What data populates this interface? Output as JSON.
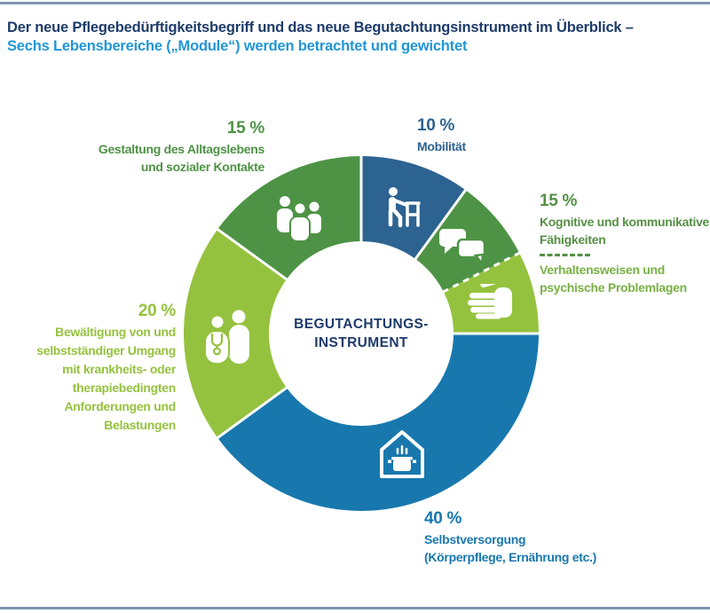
{
  "header": {
    "title_line1": "Der neue Pflegebedürftigkeitsbegriff und das neue Begutachtungsinstrument im Überblick –",
    "title_line2": "Sechs Lebensbereiche („Module“) werden betrachtet und gewichtet",
    "title_color_line1": "#1e3b6a",
    "title_color_line2": "#2196d6"
  },
  "chart_data": {
    "type": "pie",
    "title": "Sechs Lebensbereiche („Module“) werden betrachtet und gewichtet",
    "center_label": {
      "line1": "BEGUTACHTUNGS-",
      "line2": "INSTRUMENT"
    },
    "direction": "clockwise",
    "start_angle_deg": 0,
    "outer_radius_px": 200,
    "inner_radius_px": 104,
    "gap_color": "#ffffff",
    "arcs": [
      {
        "name": "mobilitaet",
        "label": "Mobilität",
        "module_percent_label": "10 %",
        "percent_of_total": 10,
        "color": "#2d6391",
        "divider_before": "solid",
        "icon": "person-with-walker-icon"
      },
      {
        "name": "kognitive-faehigkeiten",
        "label": "Kognitive und kommunikative Fähigkeiten",
        "module_percent_label": "15 %",
        "percent_of_total": 7.5,
        "color": "#4e9345",
        "divider_before": "solid",
        "icon": "speech-bubbles-icon"
      },
      {
        "name": "verhaltensweisen",
        "label": "Verhaltensweisen und psychische Problemlagen",
        "module_percent_label": "15 %",
        "percent_of_total": 7.5,
        "color": "#95c23e",
        "divider_before": "dashed",
        "icon": "hand-icon"
      },
      {
        "name": "selbstversorgung",
        "label": "Selbstversorgung (Körperpflege, Ernährung etc.)",
        "module_percent_label": "40 %",
        "percent_of_total": 40,
        "color": "#1878ae",
        "divider_before": "solid",
        "icon": "house-cooking-pot-icon"
      },
      {
        "name": "bewaeltigung",
        "label": "Bewältigung von und selbstständiger Umgang mit krankheits- oder therapiebedingten Anforderungen und Belastungen",
        "module_percent_label": "20 %",
        "percent_of_total": 20,
        "color": "#95c23e",
        "divider_before": "solid",
        "icon": "doctor-patient-icon"
      },
      {
        "name": "gestaltung-alltagsleben",
        "label": "Gestaltung des Alltagslebens und sozialer Kontakte",
        "module_percent_label": "15 %",
        "percent_of_total": 15,
        "color": "#4e9345",
        "divider_before": "solid",
        "icon": "people-group-icon"
      }
    ]
  },
  "labels": {
    "gestaltung": {
      "percent": "15 %",
      "lines": [
        "Gestaltung des Alltagslebens",
        "und sozialer Kontakte"
      ],
      "color": "#4e9345"
    },
    "mobilitaet": {
      "percent": "10 %",
      "lines": [
        "Mobilität"
      ],
      "color": "#2d6391"
    },
    "kognitive": {
      "percent": "15 %",
      "lines": [
        "Kognitive und kommunikative",
        "Fähigkeiten"
      ],
      "lines2": [
        "Verhaltensweisen und",
        "psychische Problemlagen"
      ],
      "color": "#559045",
      "color2": "#79b144"
    },
    "bewaeltigung": {
      "percent": "20 %",
      "lines": [
        "Bewältigung von und",
        "selbstständiger Umgang",
        "mit krankheits- oder",
        "therapiebedingten",
        "Anforderungen und",
        "Belastungen"
      ],
      "color": "#95c23e"
    },
    "selbstversorgung": {
      "percent": "40 %",
      "lines": [
        "Selbstversorgung",
        "(Körperpflege, Ernährung etc.)"
      ],
      "color": "#1878ae"
    }
  },
  "rule_color": "#7e96b0"
}
